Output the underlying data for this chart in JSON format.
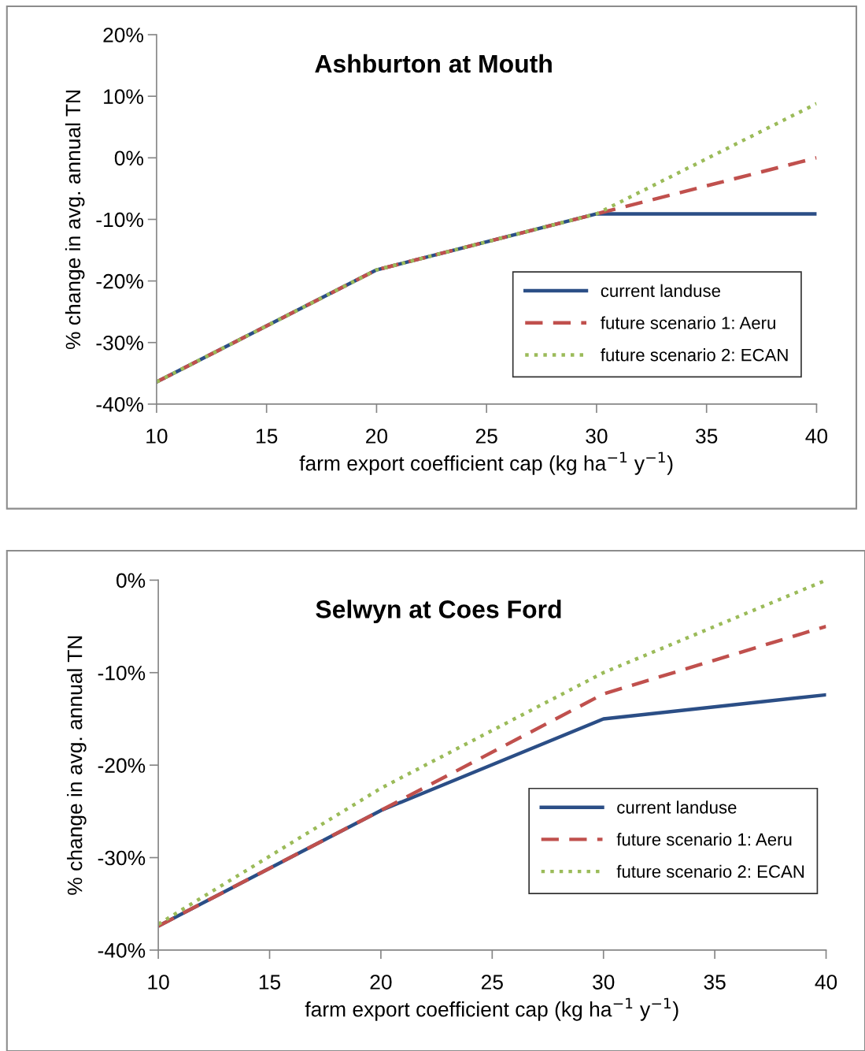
{
  "chart_data": [
    {
      "type": "line",
      "title": "Ashburton at Mouth",
      "xlabel": "farm export coefficient cap (kg ha$^{−1}$ y$^{−1}$)",
      "ylabel": "% change in avg. annual TN",
      "x": [
        10,
        20,
        30,
        40
      ],
      "series": [
        {
          "name": "current landuse",
          "color": "#2b4e86",
          "line_style": "solid",
          "values": [
            -36.4,
            -18.2,
            -9.1,
            -9.1
          ]
        },
        {
          "name": "future scenario 1: Aeru",
          "color": "#c0504d",
          "line_style": "dashed",
          "values": [
            -36.4,
            -18.2,
            -9.1,
            0
          ]
        },
        {
          "name": "future scenario 2: ECAN",
          "color": "#9bbb59",
          "line_style": "dotted",
          "values": [
            -36.4,
            -18.2,
            -9.1,
            8.8
          ]
        }
      ],
      "xlim": [
        10,
        40
      ],
      "xticks": [
        10,
        15,
        20,
        25,
        30,
        35,
        40
      ],
      "ylim": [
        -40,
        20
      ],
      "yticks": [
        {
          "value": -40,
          "label": "-40%"
        },
        {
          "value": -30,
          "label": "-30%"
        },
        {
          "value": -20,
          "label": "-20%"
        },
        {
          "value": -10,
          "label": "-10%"
        },
        {
          "value": 0,
          "label": "0%"
        },
        {
          "value": 10,
          "label": "10%"
        },
        {
          "value": 20,
          "label": "20%"
        }
      ],
      "grid": false,
      "legend": "bottom right",
      "marker": "none"
    },
    {
      "type": "line",
      "title": "Selwyn at Coes Ford",
      "xlabel": "farm export coefficient cap (kg ha$^{−1}$ y$^{−1}$)",
      "ylabel": "% change in avg. annual TN",
      "x": [
        10,
        20,
        30,
        40
      ],
      "series": [
        {
          "name": "current landuse",
          "color": "#2b4e86",
          "line_style": "solid",
          "values": [
            -37.4,
            -24.9,
            -15.0,
            -12.4
          ]
        },
        {
          "name": "future scenario 1: Aeru",
          "color": "#c0504d",
          "line_style": "dashed",
          "values": [
            -37.4,
            -24.9,
            -12.3,
            -5.0
          ]
        },
        {
          "name": "future scenario 2: ECAN",
          "color": "#9bbb59",
          "line_style": "dotted",
          "values": [
            -37.2,
            -22.5,
            -10.0,
            0
          ]
        }
      ],
      "xlim": [
        10,
        40
      ],
      "xticks": [
        10,
        15,
        20,
        25,
        30,
        35,
        40
      ],
      "ylim": [
        -40,
        0
      ],
      "yticks": [
        {
          "value": -40,
          "label": "-40%"
        },
        {
          "value": -30,
          "label": "-30%"
        },
        {
          "value": -20,
          "label": "-20%"
        },
        {
          "value": -10,
          "label": "-10%"
        },
        {
          "value": 0,
          "label": "0%"
        }
      ],
      "grid": false,
      "legend": "right",
      "marker": "none"
    }
  ]
}
